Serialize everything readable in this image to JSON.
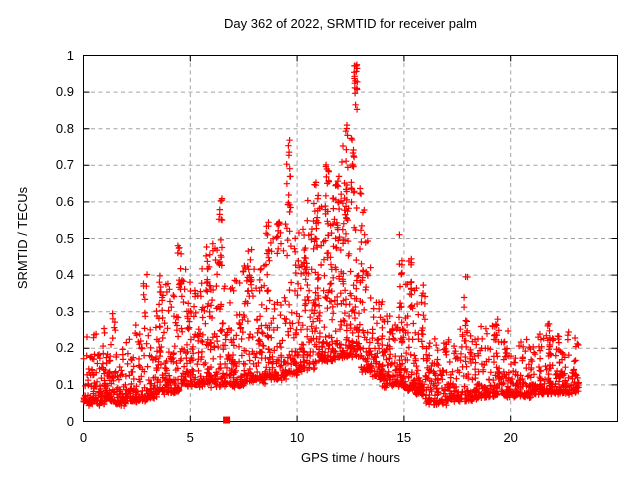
{
  "chart_data": {
    "type": "scatter",
    "title": "Day 362 of 2022, SRMTID for receiver palm",
    "xlabel": "GPS time / hours",
    "ylabel": "SRMTID / TECUs",
    "xlim": [
      0,
      25
    ],
    "ylim": [
      0,
      1
    ],
    "x_ticks": [
      0,
      5,
      10,
      15,
      20
    ],
    "y_ticks": [
      0,
      0.1,
      0.2,
      0.3,
      0.4,
      0.5,
      0.6,
      0.7,
      0.8,
      0.9,
      1
    ],
    "grid": {
      "show": true,
      "color": "#a2a2a2",
      "dash": "4 3.5"
    },
    "axis_color": "#000000",
    "marker": {
      "shape": "plus",
      "color": "#ff0000",
      "size": 7
    },
    "x_data_range": [
      0,
      23.2
    ],
    "n_points_estimate": 2800,
    "bins_format": "[x_start_hr, x_end_hr, n_points, y_min_TECUs, y_max_TECUs] baseline scatter density read from plot",
    "spikes_format": "[x_hr, y_low_TECUs, y_high_TECUs, n_points] tall TID wave-packet columns read from plot",
    "series": [
      {
        "name": "SRMTID",
        "bins": [
          [
            0.0,
            0.5,
            55,
            0.05,
            0.24
          ],
          [
            0.5,
            1.0,
            55,
            0.05,
            0.26
          ],
          [
            1.0,
            1.5,
            55,
            0.06,
            0.24
          ],
          [
            1.5,
            2.0,
            50,
            0.05,
            0.2
          ],
          [
            2.0,
            2.5,
            55,
            0.06,
            0.28
          ],
          [
            2.5,
            3.0,
            50,
            0.06,
            0.32
          ],
          [
            3.0,
            3.5,
            55,
            0.07,
            0.33
          ],
          [
            3.5,
            4.0,
            55,
            0.08,
            0.4
          ],
          [
            4.0,
            4.5,
            55,
            0.08,
            0.36
          ],
          [
            4.5,
            5.0,
            55,
            0.1,
            0.42
          ],
          [
            5.0,
            5.5,
            55,
            0.1,
            0.36
          ],
          [
            5.5,
            6.0,
            55,
            0.1,
            0.46
          ],
          [
            6.0,
            6.5,
            55,
            0.1,
            0.52
          ],
          [
            6.5,
            7.0,
            55,
            0.1,
            0.44
          ],
          [
            7.0,
            7.5,
            55,
            0.1,
            0.42
          ],
          [
            7.5,
            8.0,
            55,
            0.11,
            0.46
          ],
          [
            8.0,
            8.5,
            55,
            0.11,
            0.46
          ],
          [
            8.5,
            9.0,
            55,
            0.12,
            0.52
          ],
          [
            9.0,
            9.5,
            55,
            0.12,
            0.55
          ],
          [
            9.5,
            10.0,
            55,
            0.13,
            0.6
          ],
          [
            10.0,
            10.5,
            60,
            0.14,
            0.55
          ],
          [
            10.5,
            11.0,
            60,
            0.15,
            0.62
          ],
          [
            11.0,
            11.5,
            65,
            0.17,
            0.68
          ],
          [
            11.5,
            12.0,
            65,
            0.17,
            0.72
          ],
          [
            12.0,
            12.5,
            70,
            0.18,
            0.78
          ],
          [
            12.5,
            13.0,
            65,
            0.18,
            0.72
          ],
          [
            13.0,
            13.5,
            60,
            0.14,
            0.5
          ],
          [
            13.5,
            14.0,
            55,
            0.12,
            0.33
          ],
          [
            14.0,
            14.5,
            55,
            0.1,
            0.3
          ],
          [
            14.5,
            15.0,
            55,
            0.1,
            0.4
          ],
          [
            15.0,
            15.5,
            55,
            0.09,
            0.4
          ],
          [
            15.5,
            16.0,
            55,
            0.08,
            0.38
          ],
          [
            16.0,
            16.5,
            50,
            0.05,
            0.24
          ],
          [
            16.5,
            17.0,
            50,
            0.05,
            0.22
          ],
          [
            17.0,
            17.5,
            50,
            0.06,
            0.24
          ],
          [
            17.5,
            18.0,
            50,
            0.06,
            0.26
          ],
          [
            18.0,
            18.5,
            50,
            0.06,
            0.24
          ],
          [
            18.5,
            19.0,
            50,
            0.07,
            0.28
          ],
          [
            19.0,
            19.5,
            50,
            0.07,
            0.29
          ],
          [
            19.5,
            20.0,
            50,
            0.07,
            0.25
          ],
          [
            20.0,
            20.5,
            50,
            0.07,
            0.22
          ],
          [
            20.5,
            21.0,
            50,
            0.07,
            0.23
          ],
          [
            21.0,
            21.5,
            50,
            0.08,
            0.25
          ],
          [
            21.5,
            22.0,
            55,
            0.08,
            0.27
          ],
          [
            22.0,
            22.5,
            55,
            0.08,
            0.25
          ],
          [
            22.5,
            23.2,
            55,
            0.08,
            0.26
          ]
        ],
        "spikes": [
          [
            1.4,
            0.22,
            0.3,
            6
          ],
          [
            2.9,
            0.25,
            0.41,
            8
          ],
          [
            3.6,
            0.3,
            0.42,
            8
          ],
          [
            4.5,
            0.32,
            0.49,
            12
          ],
          [
            5.8,
            0.34,
            0.48,
            10
          ],
          [
            6.4,
            0.4,
            0.63,
            14
          ],
          [
            7.8,
            0.35,
            0.48,
            8
          ],
          [
            8.6,
            0.38,
            0.55,
            10
          ],
          [
            9.1,
            0.4,
            0.58,
            8
          ],
          [
            9.6,
            0.55,
            0.78,
            14
          ],
          [
            10.4,
            0.35,
            0.55,
            10
          ],
          [
            10.9,
            0.45,
            0.66,
            12
          ],
          [
            11.4,
            0.5,
            0.72,
            14
          ],
          [
            11.9,
            0.45,
            0.75,
            12
          ],
          [
            12.3,
            0.55,
            0.82,
            16
          ],
          [
            12.6,
            0.62,
            0.8,
            12
          ],
          [
            12.75,
            0.85,
            0.975,
            18
          ],
          [
            13.1,
            0.4,
            0.6,
            8
          ],
          [
            14.85,
            0.3,
            0.53,
            12
          ],
          [
            15.3,
            0.28,
            0.45,
            10
          ],
          [
            15.9,
            0.24,
            0.38,
            10
          ],
          [
            17.9,
            0.22,
            0.41,
            9
          ],
          [
            19.3,
            0.22,
            0.3,
            6
          ],
          [
            21.8,
            0.2,
            0.28,
            6
          ]
        ]
      },
      {
        "name": "flag-marker",
        "shape": "filled-square",
        "color": "#ff0000",
        "points": [
          [
            6.7,
            0.004
          ]
        ]
      }
    ]
  }
}
